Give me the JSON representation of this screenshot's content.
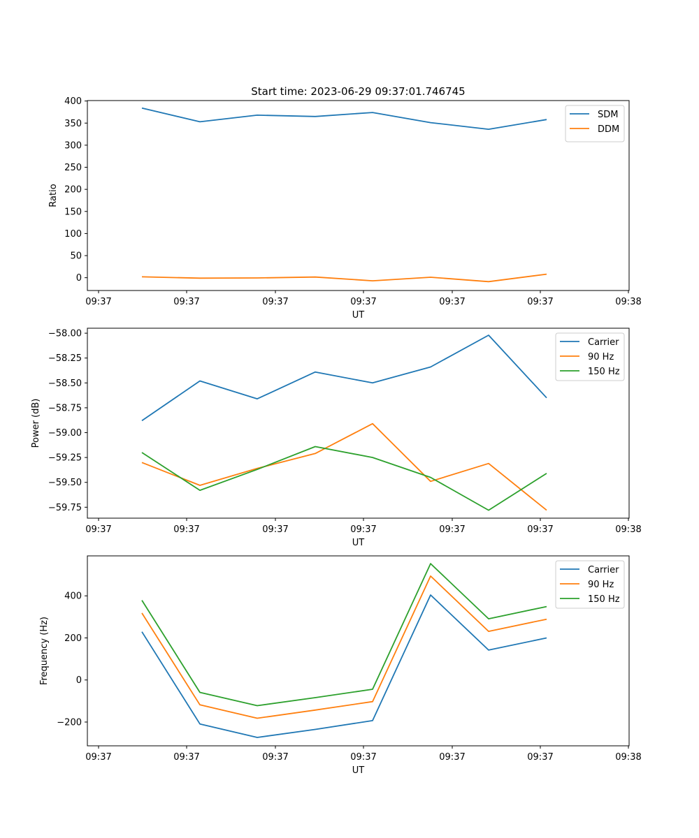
{
  "figure": {
    "suptitle": "Start time: 2023-06-29 09:37:01.746745"
  },
  "chart_data": [
    {
      "type": "line",
      "title": "Start time: 2023-06-29 09:37:01.746745",
      "xlabel": "UT",
      "ylabel": "Ratio",
      "x_tick_labels": [
        "09:37",
        "09:37",
        "09:37",
        "09:37",
        "09:37",
        "09:37",
        "09:37"
      ],
      "x_last_tick_label": "09:38",
      "y_ticks": [
        0,
        50,
        100,
        150,
        200,
        250,
        300,
        350,
        400
      ],
      "y_tick_labels": [
        "0",
        "50",
        "100",
        "150",
        "200",
        "250",
        "300",
        "350",
        "400"
      ],
      "ylim": [
        -29,
        401
      ],
      "legend_position": "top-right",
      "series": [
        {
          "name": "SDM",
          "color": "#1f77b4",
          "values": [
            384,
            353,
            368,
            365,
            374,
            351,
            336,
            358
          ]
        },
        {
          "name": "DDM",
          "color": "#ff7f0e",
          "values": [
            2,
            -1,
            -0.5,
            1.5,
            -7,
            1,
            -9,
            8
          ]
        }
      ]
    },
    {
      "type": "line",
      "title": "",
      "xlabel": "UT",
      "ylabel": "Power (dB)",
      "x_tick_labels": [
        "09:37",
        "09:37",
        "09:37",
        "09:37",
        "09:37",
        "09:37",
        "09:37"
      ],
      "x_last_tick_label": "09:38",
      "y_ticks": [
        -58.0,
        -58.25,
        -58.5,
        -58.75,
        -59.0,
        -59.25,
        -59.5,
        -59.75
      ],
      "y_tick_labels": [
        "−58.00",
        "−58.25",
        "−58.50",
        "−58.75",
        "−59.00",
        "−59.25",
        "−59.50",
        "−59.75"
      ],
      "ylim": [
        -59.86,
        -57.95
      ],
      "legend_position": "top-right",
      "series": [
        {
          "name": "Carrier",
          "color": "#1f77b4",
          "values": [
            -58.88,
            -58.48,
            -58.66,
            -58.39,
            -58.5,
            -58.34,
            -58.02,
            -58.65
          ]
        },
        {
          "name": "90 Hz",
          "color": "#ff7f0e",
          "values": [
            -59.3,
            -59.53,
            -59.36,
            -59.21,
            -58.91,
            -59.49,
            -59.31,
            -59.78
          ]
        },
        {
          "name": "150 Hz",
          "color": "#2ca02c",
          "values": [
            -59.2,
            -59.58,
            -59.37,
            -59.14,
            -59.25,
            -59.45,
            -59.78,
            -59.41
          ]
        }
      ]
    },
    {
      "type": "line",
      "title": "",
      "xlabel": "UT",
      "ylabel": "Frequency (Hz)",
      "x_tick_labels": [
        "09:37",
        "09:37",
        "09:37",
        "09:37",
        "09:37",
        "09:37",
        "09:37"
      ],
      "x_last_tick_label": "09:38",
      "y_ticks": [
        -200,
        0,
        200,
        400
      ],
      "y_tick_labels": [
        "−200",
        "0",
        "200",
        "400"
      ],
      "ylim": [
        -313,
        590
      ],
      "legend_position": "top-right",
      "series": [
        {
          "name": "Carrier",
          "color": "#1f77b4",
          "values": [
            229,
            -209,
            -273,
            -235,
            -193,
            404,
            142,
            200
          ]
        },
        {
          "name": "90 Hz",
          "color": "#ff7f0e",
          "values": [
            318,
            -118,
            -182,
            -143,
            -103,
            494,
            231,
            289
          ]
        },
        {
          "name": "150 Hz",
          "color": "#2ca02c",
          "values": [
            379,
            -59,
            -122,
            -84,
            -44,
            553,
            291,
            349
          ]
        }
      ]
    }
  ]
}
